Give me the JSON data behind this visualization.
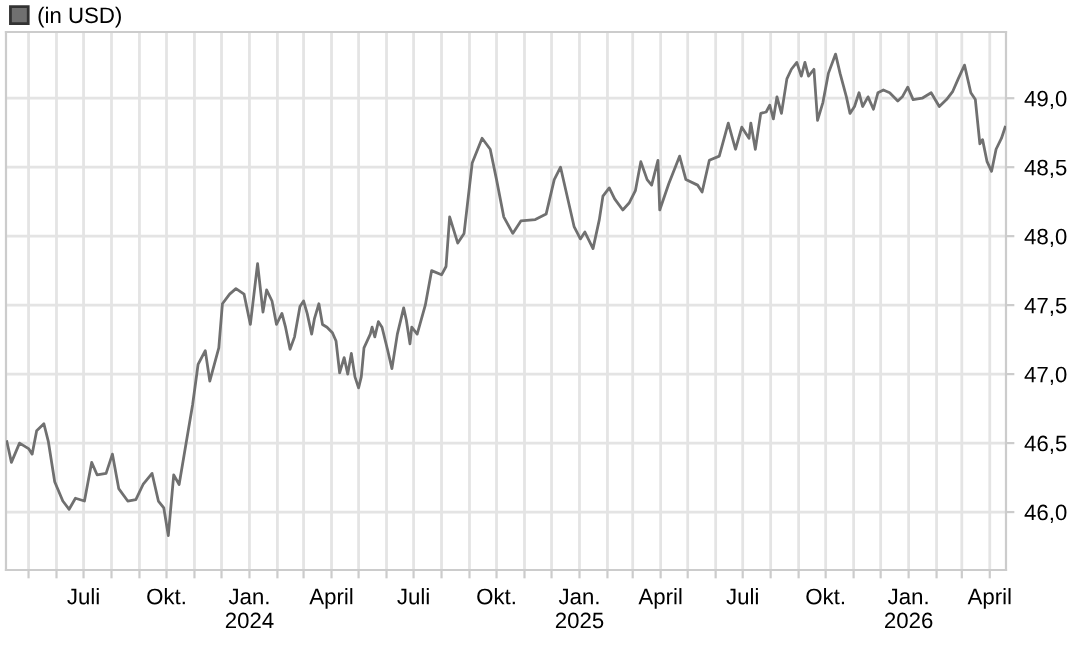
{
  "chart_data": {
    "type": "line",
    "legend": "top left",
    "grid": true,
    "line_style": "solid",
    "marker": "none",
    "xlim": [
      "2023-04-06",
      "2026-04-19"
    ],
    "ylim": [
      45.58,
      49.48
    ],
    "yticks": [
      {
        "value": 46.0,
        "label": "46,0"
      },
      {
        "value": 46.5,
        "label": "46,5"
      },
      {
        "value": 47.0,
        "label": "47,0"
      },
      {
        "value": 47.5,
        "label": "47,5"
      },
      {
        "value": 48.0,
        "label": "48,0"
      },
      {
        "value": 48.5,
        "label": "48,5"
      },
      {
        "value": 49.0,
        "label": "49,0"
      }
    ],
    "xticks": [
      {
        "value": "2023-05-01",
        "label": null
      },
      {
        "value": "2023-06-01",
        "label": null
      },
      {
        "value": "2023-07-01",
        "label": "Juli"
      },
      {
        "value": "2023-08-01",
        "label": null
      },
      {
        "value": "2023-09-01",
        "label": null
      },
      {
        "value": "2023-10-01",
        "label": "Okt."
      },
      {
        "value": "2023-11-01",
        "label": null
      },
      {
        "value": "2023-12-01",
        "label": null
      },
      {
        "value": "2024-01-01",
        "label": "Jan.\n2024"
      },
      {
        "value": "2024-02-01",
        "label": null
      },
      {
        "value": "2024-03-01",
        "label": null
      },
      {
        "value": "2024-04-01",
        "label": "April"
      },
      {
        "value": "2024-05-01",
        "label": null
      },
      {
        "value": "2024-06-01",
        "label": null
      },
      {
        "value": "2024-07-01",
        "label": "Juli"
      },
      {
        "value": "2024-08-01",
        "label": null
      },
      {
        "value": "2024-09-01",
        "label": null
      },
      {
        "value": "2024-10-01",
        "label": "Okt."
      },
      {
        "value": "2024-11-01",
        "label": null
      },
      {
        "value": "2024-12-01",
        "label": null
      },
      {
        "value": "2025-01-01",
        "label": "Jan.\n2025"
      },
      {
        "value": "2025-02-01",
        "label": null
      },
      {
        "value": "2025-03-01",
        "label": null
      },
      {
        "value": "2025-04-01",
        "label": "April"
      },
      {
        "value": "2025-05-01",
        "label": null
      },
      {
        "value": "2025-06-01",
        "label": null
      },
      {
        "value": "2025-07-01",
        "label": "Juli"
      },
      {
        "value": "2025-08-01",
        "label": null
      },
      {
        "value": "2025-09-01",
        "label": null
      },
      {
        "value": "2025-10-01",
        "label": "Okt."
      },
      {
        "value": "2025-11-01",
        "label": null
      },
      {
        "value": "2025-12-01",
        "label": null
      },
      {
        "value": "2026-01-01",
        "label": "Jan.\n2026"
      },
      {
        "value": "2026-02-01",
        "label": null
      },
      {
        "value": "2026-03-01",
        "label": null
      },
      {
        "value": "2026-04-01",
        "label": "April"
      }
    ],
    "series": [
      {
        "name": "(in USD)",
        "color": "#707070",
        "x": [
          "2023-04-07",
          "2023-04-12",
          "2023-04-21",
          "2023-05-01",
          "2023-05-05",
          "2023-05-10",
          "2023-05-18",
          "2023-05-23",
          "2023-05-30",
          "2023-06-08",
          "2023-06-15",
          "2023-06-22",
          "2023-07-02",
          "2023-07-10",
          "2023-07-16",
          "2023-07-26",
          "2023-08-02",
          "2023-08-09",
          "2023-08-19",
          "2023-08-28",
          "2023-09-05",
          "2023-09-15",
          "2023-09-22",
          "2023-09-28",
          "2023-10-03",
          "2023-10-09",
          "2023-10-15",
          "2023-10-23",
          "2023-10-30",
          "2023-11-05",
          "2023-11-13",
          "2023-11-18",
          "2023-11-28",
          "2023-12-02",
          "2023-12-10",
          "2023-12-17",
          "2023-12-26",
          "2024-01-02",
          "2024-01-06",
          "2024-01-10",
          "2024-01-16",
          "2024-01-20",
          "2024-01-26",
          "2024-01-31",
          "2024-02-06",
          "2024-02-10",
          "2024-02-15",
          "2024-02-20",
          "2024-02-26",
          "2024-03-01",
          "2024-03-05",
          "2024-03-10",
          "2024-03-13",
          "2024-03-18",
          "2024-03-22",
          "2024-03-27",
          "2024-04-02",
          "2024-04-06",
          "2024-04-10",
          "2024-04-15",
          "2024-04-19",
          "2024-04-23",
          "2024-04-27",
          "2024-05-01",
          "2024-05-04",
          "2024-05-07",
          "2024-05-14",
          "2024-05-16",
          "2024-05-19",
          "2024-05-23",
          "2024-05-27",
          "2024-06-02",
          "2024-06-07",
          "2024-06-13",
          "2024-06-20",
          "2024-06-23",
          "2024-06-27",
          "2024-06-29",
          "2024-07-05",
          "2024-07-14",
          "2024-07-21",
          "2024-08-01",
          "2024-08-06",
          "2024-08-10",
          "2024-08-19",
          "2024-08-26",
          "2024-09-04",
          "2024-09-15",
          "2024-09-24",
          "2024-10-01",
          "2024-10-09",
          "2024-10-19",
          "2024-10-28",
          "2024-11-13",
          "2024-11-25",
          "2024-12-04",
          "2024-12-11",
          "2024-12-26",
          "2025-01-02",
          "2025-01-07",
          "2025-01-16",
          "2025-01-23",
          "2025-01-27",
          "2025-02-03",
          "2025-02-09",
          "2025-02-18",
          "2025-02-25",
          "2025-03-04",
          "2025-03-10",
          "2025-03-17",
          "2025-03-22",
          "2025-03-29",
          "2025-03-31",
          "2025-04-10",
          "2025-04-22",
          "2025-04-29",
          "2025-05-12",
          "2025-05-17",
          "2025-05-25",
          "2025-06-05",
          "2025-06-15",
          "2025-06-23",
          "2025-06-30",
          "2025-07-08",
          "2025-07-10",
          "2025-07-15",
          "2025-07-21",
          "2025-07-27",
          "2025-07-31",
          "2025-08-04",
          "2025-08-08",
          "2025-08-13",
          "2025-08-19",
          "2025-08-24",
          "2025-08-30",
          "2025-09-04",
          "2025-09-08",
          "2025-09-12",
          "2025-09-18",
          "2025-09-22",
          "2025-09-28",
          "2025-10-04",
          "2025-10-12",
          "2025-10-17",
          "2025-10-24",
          "2025-10-28",
          "2025-11-02",
          "2025-11-07",
          "2025-11-11",
          "2025-11-17",
          "2025-11-23",
          "2025-11-28",
          "2025-12-04",
          "2025-12-11",
          "2025-12-20",
          "2025-12-25",
          "2025-12-31",
          "2026-01-06",
          "2026-01-16",
          "2026-01-26",
          "2026-02-04",
          "2026-02-12",
          "2026-02-19",
          "2026-02-25",
          "2026-03-04",
          "2026-03-11",
          "2026-03-16",
          "2026-03-21",
          "2026-03-24",
          "2026-03-29",
          "2026-04-03",
          "2026-04-08",
          "2026-04-14",
          "2026-04-18"
        ],
        "values": [
          46.51,
          46.36,
          46.5,
          46.46,
          46.42,
          46.59,
          46.64,
          46.51,
          46.22,
          46.08,
          46.02,
          46.1,
          46.08,
          46.36,
          46.27,
          46.28,
          46.42,
          46.17,
          46.08,
          46.09,
          46.2,
          46.28,
          46.08,
          46.03,
          45.83,
          46.27,
          46.2,
          46.51,
          46.78,
          47.07,
          47.17,
          46.95,
          47.19,
          47.51,
          47.58,
          47.62,
          47.58,
          47.36,
          47.58,
          47.8,
          47.45,
          47.61,
          47.53,
          47.36,
          47.44,
          47.34,
          47.18,
          47.27,
          47.49,
          47.53,
          47.44,
          47.29,
          47.4,
          47.51,
          47.36,
          47.34,
          47.3,
          47.24,
          47.01,
          47.12,
          47.0,
          47.15,
          46.98,
          46.9,
          46.98,
          47.19,
          47.29,
          47.34,
          47.27,
          47.38,
          47.34,
          47.18,
          47.04,
          47.29,
          47.48,
          47.39,
          47.22,
          47.34,
          47.29,
          47.5,
          47.75,
          47.72,
          47.78,
          48.14,
          47.95,
          48.02,
          48.53,
          48.71,
          48.63,
          48.41,
          48.14,
          48.02,
          48.11,
          48.12,
          48.16,
          48.41,
          48.5,
          48.07,
          47.98,
          48.03,
          47.91,
          48.12,
          48.29,
          48.35,
          48.27,
          48.19,
          48.24,
          48.33,
          48.54,
          48.41,
          48.37,
          48.55,
          48.19,
          48.38,
          48.58,
          48.41,
          48.37,
          48.32,
          48.55,
          48.58,
          48.82,
          48.63,
          48.79,
          48.71,
          48.82,
          48.63,
          48.89,
          48.9,
          48.95,
          48.85,
          49.01,
          48.89,
          49.14,
          49.21,
          49.26,
          49.16,
          49.26,
          49.16,
          49.21,
          48.84,
          48.97,
          49.18,
          49.32,
          49.18,
          49.01,
          48.89,
          48.94,
          49.04,
          48.94,
          49.01,
          48.92,
          49.04,
          49.06,
          49.04,
          48.98,
          49.01,
          49.08,
          48.99,
          49.0,
          49.04,
          48.94,
          48.99,
          49.05,
          49.14,
          49.24,
          49.04,
          48.99,
          48.67,
          48.7,
          48.54,
          48.47,
          48.63,
          48.71,
          48.79
        ]
      }
    ]
  }
}
